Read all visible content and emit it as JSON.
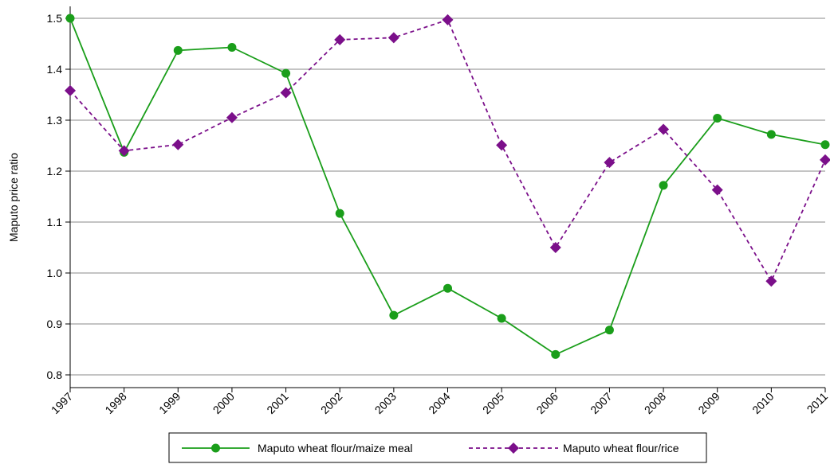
{
  "chart_data": {
    "type": "line",
    "title": "",
    "xlabel": "",
    "ylabel": "Maputo price ratio",
    "x": [
      "1997",
      "1998",
      "1999",
      "2000",
      "2001",
      "2002",
      "2003",
      "2004",
      "2005",
      "2006",
      "2007",
      "2008",
      "2009",
      "2010",
      "2011"
    ],
    "ylim": [
      0.8,
      1.5
    ],
    "yticks": [
      "0.8",
      "0.9",
      "1.0",
      "1.1",
      "1.2",
      "1.3",
      "1.4",
      "1.5"
    ],
    "grid": true,
    "legend_position": "bottom",
    "series": [
      {
        "name": "Maputo wheat flour/maize meal",
        "color": "#1a9e1a",
        "line_style": "solid",
        "marker": "circle",
        "values": [
          1.5,
          1.237,
          1.437,
          1.443,
          1.392,
          1.117,
          0.917,
          0.97,
          0.911,
          0.84,
          0.888,
          1.172,
          1.304,
          1.272,
          1.252
        ]
      },
      {
        "name": "Maputo wheat flour/rice",
        "color": "#7b0f8a",
        "line_style": "dashed",
        "marker": "diamond",
        "values": [
          1.358,
          1.24,
          1.252,
          1.305,
          1.354,
          1.458,
          1.462,
          1.497,
          1.251,
          1.05,
          1.217,
          1.282,
          1.163,
          0.984,
          1.222
        ]
      }
    ]
  }
}
